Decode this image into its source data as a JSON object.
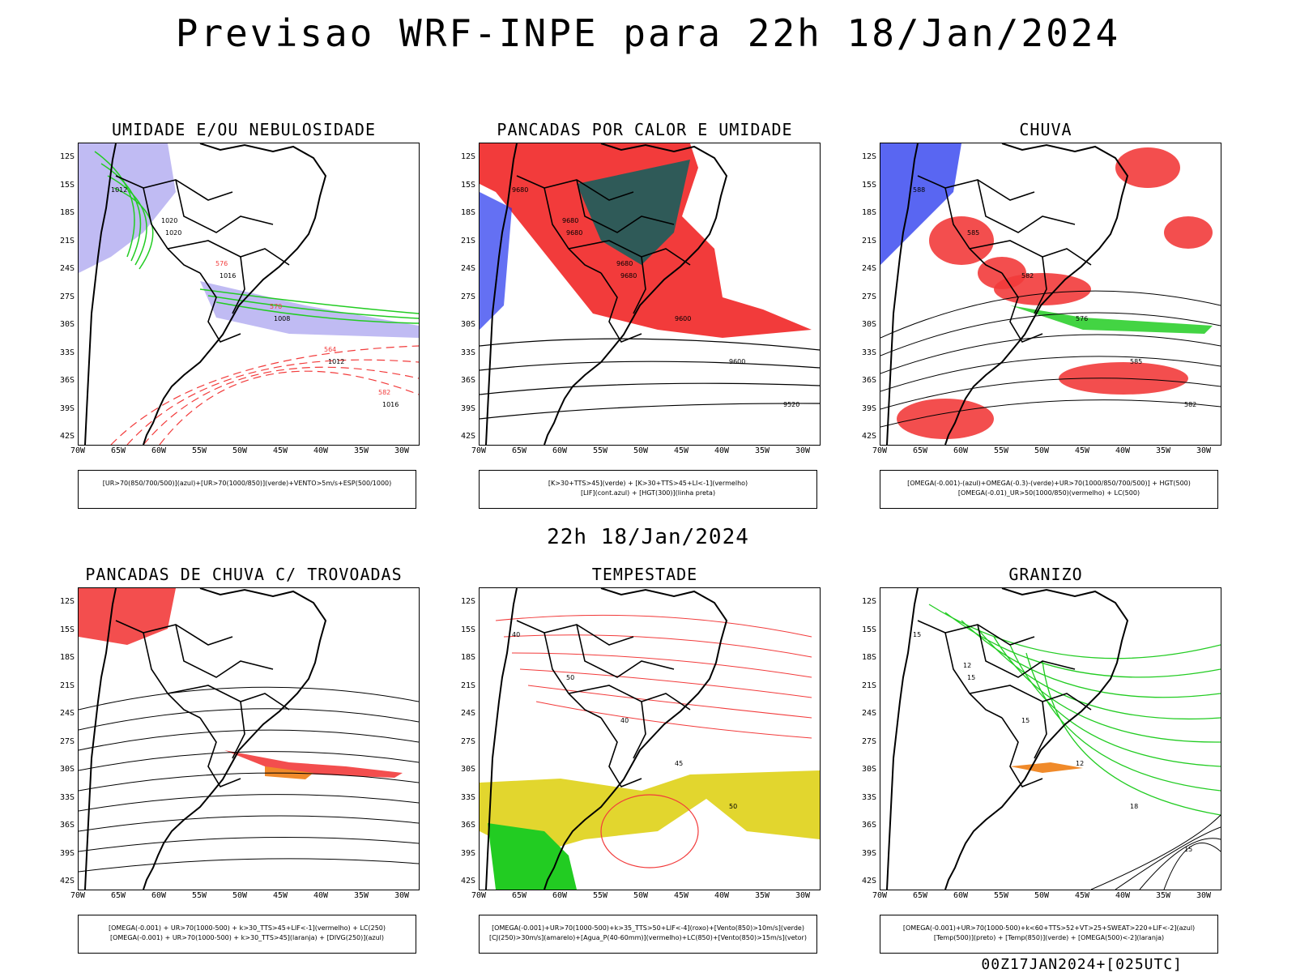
{
  "title": "Previsao WRF-INPE  para 22h 18/Jan/2024",
  "mid_title": "22h 18/Jan/2024",
  "footer": "00Z17JAN2024+[025UTC]",
  "axes": {
    "lat_labels": [
      "12S",
      "15S",
      "18S",
      "21S",
      "24S",
      "27S",
      "30S",
      "33S",
      "36S",
      "39S",
      "42S"
    ],
    "lon_labels": [
      "70W",
      "65W",
      "60W",
      "55W",
      "50W",
      "45W",
      "40W",
      "35W",
      "30W"
    ]
  },
  "colors": {
    "red": "#f23b3b",
    "green": "#22cc22",
    "blue": "#2233ee",
    "lavender": "#b0aaf0",
    "darkteal": "#2f5a58",
    "yellow": "#e2d62e",
    "orange": "#f08a2a",
    "purple": "#cc22cc"
  },
  "panels": [
    {
      "title": "UMIDADE E/OU NEBULOSIDADE",
      "legend": [
        "[UR>70(850/700/500)](azul)+[UR>70(1000/850)](verde)+VENTO>5m/s+ESP(500/1000)"
      ],
      "labels": [
        "1012",
        "1020",
        "1016",
        "1008",
        "1012",
        "1016",
        "1020",
        "576",
        "570",
        "564",
        "582"
      ]
    },
    {
      "title": "PANCADAS POR CALOR E UMIDADE",
      "legend": [
        "[K>30+TTS>45](verde)  +  [K>30+TTS>45+LI<-1](vermelho)",
        "[LIF](cont.azul)  +  [HGT(300)](linha preta)"
      ],
      "labels": [
        "9680",
        "9680",
        "9680",
        "9600",
        "9600",
        "9520",
        "9680",
        "9680"
      ]
    },
    {
      "title": "CHUVA",
      "legend": [
        "[OMEGA(-0.001)-(azul)+OMEGA(-0.3)-(verde)+UR>70(1000/850/700/500)]  +  HGT(500)",
        "[OMEGA(-0.01)_UR>50(1000/850)(vermelho)  +  LC(500)"
      ],
      "labels": [
        "588",
        "585",
        "582",
        "576",
        "585",
        "582"
      ]
    },
    {
      "title": "PANCADAS DE CHUVA C/ TROVOADAS",
      "legend": [
        "[OMEGA(-0.001)  +  UR>70(1000-500)  +  k>30_TTS>45+LIF<-1](vermelho)  +  LC(250)",
        "[OMEGA(-0.001)  +  UR>70(1000-500)  +  k>30_TTS>45](laranja)  +  [DIVG(250)](azul)"
      ],
      "labels": []
    },
    {
      "title": "TEMPESTADE",
      "legend": [
        "[OMEGA(-0.001)+UR>70(1000-500)+k>35_TTS>50+LIF<-4](roxo)+[Vento(850)>10m/s](verde)",
        "[CJ(250)>30m/s](amarelo)+[Agua_P(40-60mm)](vermelho)+LC(850)+[Vento(850)>15m/s](vetor)"
      ],
      "labels": [
        "40",
        "50",
        "40",
        "45",
        "50"
      ]
    },
    {
      "title": "GRANIZO",
      "legend": [
        "[OMEGA(-0.001)+UR>70(1000-500)+k<60+TTS>52+VT>25+SWEAT>220+LIF<-2](azul)",
        "[Temp(500)](preto)  +  [Temp(850)](verde)  +  [OMEGA(500)<-2](laranja)"
      ],
      "labels": [
        "15",
        "15",
        "15",
        "12",
        "18",
        "15",
        "12"
      ]
    }
  ]
}
